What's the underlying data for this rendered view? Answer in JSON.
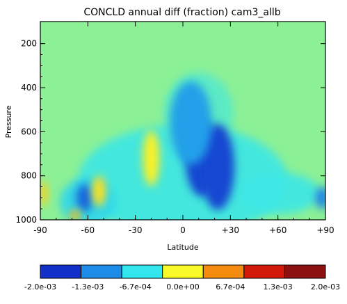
{
  "chart_data": {
    "type": "heatmap",
    "title": "CONCLD annual diff (fraction) cam3_allb",
    "xlabel": "Latitude",
    "ylabel": "Pressure",
    "xlim": [
      -90,
      90
    ],
    "ylim": [
      1000,
      100
    ],
    "xticks": [
      -90,
      -60,
      -30,
      0,
      30,
      60,
      90
    ],
    "xtick_labels": [
      "-90",
      "-60",
      "-30",
      "0",
      "+30",
      "+60",
      "+90"
    ],
    "yticks": [
      200,
      400,
      600,
      800,
      1000
    ],
    "ytick_labels": [
      "200",
      "400",
      "600",
      "800",
      "1000"
    ],
    "colorbar": {
      "range": [
        -0.002,
        0.002
      ],
      "tick_labels": [
        "-2.0e-03",
        "-1.3e-03",
        "-6.7e-04",
        "0.0e+00",
        "6.7e-04",
        "1.3e-03",
        "2.0e-03"
      ],
      "colors": [
        "#1230c8",
        "#1c8ce8",
        "#33e6ee",
        "#fafa2a",
        "#f48a10",
        "#d21a0a",
        "#8c1010"
      ]
    },
    "background_value": 0.0,
    "features": [
      {
        "lat": 12,
        "p": 720,
        "value": -0.0018
      },
      {
        "lat": 22,
        "p": 760,
        "value": -0.0018
      },
      {
        "lat": 5,
        "p": 560,
        "value": -0.0012
      },
      {
        "lat": -62,
        "p": 900,
        "value": -0.0016
      },
      {
        "lat": 88,
        "p": 900,
        "value": -0.0014
      },
      {
        "lat": -20,
        "p": 720,
        "value": 0.0003
      },
      {
        "lat": -53,
        "p": 870,
        "value": 0.0004
      },
      {
        "lat": -68,
        "p": 980,
        "value": 0.0006
      },
      {
        "lat": -88,
        "p": 880,
        "value": 0.0005
      }
    ]
  }
}
